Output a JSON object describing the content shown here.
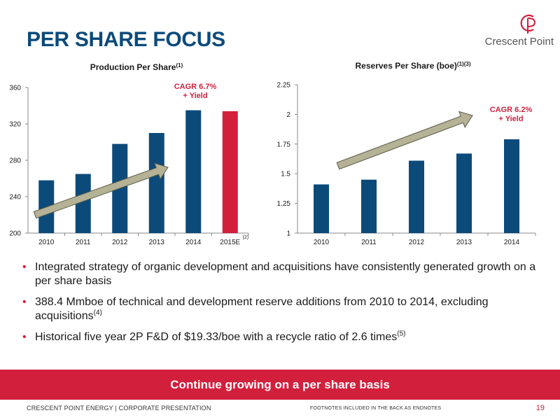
{
  "header": {
    "title": "PER SHARE FOCUS",
    "logo_text": "Crescent Point"
  },
  "colors": {
    "bar": "#0c4a7a",
    "bar_estimate": "#d21f3c",
    "accent": "#d21f3c",
    "arrow": "#b5b295"
  },
  "chart_data": [
    {
      "type": "bar",
      "title": "Production Per Share",
      "title_sup": "(1)",
      "categories": [
        "2010",
        "2011",
        "2012",
        "2013",
        "2014",
        "2015E"
      ],
      "category_sup": [
        "",
        "",
        "",
        "",
        "",
        "(2)"
      ],
      "values": [
        258,
        265,
        298,
        310,
        335,
        334
      ],
      "highlight_last": true,
      "ylim": [
        200,
        360
      ],
      "yticks": [
        200,
        240,
        280,
        320,
        360
      ],
      "ytick_labels": [
        "200",
        "240",
        "280",
        "320",
        "360"
      ],
      "annotation": [
        "CAGR 6.7%",
        "+ Yield"
      ],
      "grid": false
    },
    {
      "type": "bar",
      "title": "Reserves Per Share (boe)",
      "title_sup": "(1)(3)",
      "categories": [
        "2010",
        "2011",
        "2012",
        "2013",
        "2014"
      ],
      "category_sup": [
        "",
        "",
        "",
        "",
        ""
      ],
      "values": [
        1.41,
        1.45,
        1.61,
        1.67,
        1.79
      ],
      "highlight_last": false,
      "ylim": [
        1,
        2.25
      ],
      "yticks": [
        1,
        1.25,
        1.5,
        1.75,
        2,
        2.25
      ],
      "ytick_labels": [
        "1",
        "1.25",
        "1.5",
        "1.75",
        "2",
        "2.25"
      ],
      "annotation": [
        "CAGR 6.2%",
        "+ Yield"
      ],
      "grid": false
    }
  ],
  "bullets": [
    {
      "text": "Integrated strategy of organic development and acquisitions have consistently generated growth on a per share basis",
      "sup": ""
    },
    {
      "text": "388.4 Mmboe of technical and development reserve additions from 2010 to 2014, excluding acquisitions",
      "sup": "(4)"
    },
    {
      "text": "Historical five year 2P F&D of $19.33/boe with a recycle ratio of 2.6 times",
      "sup": "(5)"
    }
  ],
  "banner": {
    "text": "Continue growing on a per share basis"
  },
  "footer": {
    "left": "CRESCENT POINT ENERGY  |  CORPORATE PRESENTATION",
    "center": "FOOTNOTES INCLUDED IN THE BACK AS ENDNOTES",
    "page_number": "19"
  }
}
